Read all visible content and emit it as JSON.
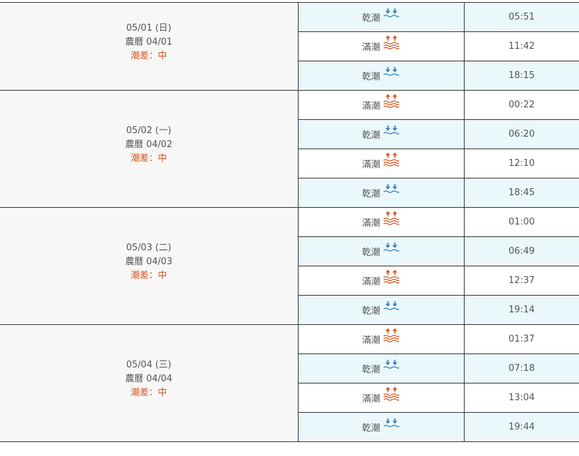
{
  "days": [
    {
      "date": "05/01 (日)",
      "lunar": "農曆 04/01",
      "range": "潮差：中",
      "tides": [
        {
          "type": "乾潮",
          "kind": "low",
          "icon": "low-tide-icon",
          "time": "05:51"
        },
        {
          "type": "滿潮",
          "kind": "high",
          "icon": "high-tide-icon",
          "time": "11:42"
        },
        {
          "type": "乾潮",
          "kind": "low",
          "icon": "low-tide-icon",
          "time": "18:15"
        }
      ]
    },
    {
      "date": "05/02 (一)",
      "lunar": "農曆 04/02",
      "range": "潮差：中",
      "tides": [
        {
          "type": "滿潮",
          "kind": "high",
          "icon": "high-tide-icon",
          "time": "00:22"
        },
        {
          "type": "乾潮",
          "kind": "low",
          "icon": "low-tide-icon",
          "time": "06:20"
        },
        {
          "type": "滿潮",
          "kind": "high",
          "icon": "high-tide-icon",
          "time": "12:10"
        },
        {
          "type": "乾潮",
          "kind": "low",
          "icon": "low-tide-icon",
          "time": "18:45"
        }
      ]
    },
    {
      "date": "05/03 (二)",
      "lunar": "農曆 04/03",
      "range": "潮差：中",
      "tides": [
        {
          "type": "滿潮",
          "kind": "high",
          "icon": "high-tide-icon",
          "time": "01:00"
        },
        {
          "type": "乾潮",
          "kind": "low",
          "icon": "low-tide-icon",
          "time": "06:49"
        },
        {
          "type": "滿潮",
          "kind": "high",
          "icon": "high-tide-icon",
          "time": "12:37"
        },
        {
          "type": "乾潮",
          "kind": "low",
          "icon": "low-tide-icon",
          "time": "19:14"
        }
      ]
    },
    {
      "date": "05/04 (三)",
      "lunar": "農曆 04/04",
      "range": "潮差：中",
      "tides": [
        {
          "type": "滿潮",
          "kind": "high",
          "icon": "high-tide-icon",
          "time": "01:37"
        },
        {
          "type": "乾潮",
          "kind": "low",
          "icon": "low-tide-icon",
          "time": "07:18"
        },
        {
          "type": "滿潮",
          "kind": "high",
          "icon": "high-tide-icon",
          "time": "13:04"
        },
        {
          "type": "乾潮",
          "kind": "low",
          "icon": "low-tide-icon",
          "time": "19:44"
        }
      ]
    }
  ],
  "colors": {
    "low_tide": "#2e7bc4",
    "high_tide": "#d9531e",
    "low_row_bg": "#eaf8fb",
    "date_bg": "#f7f7f7",
    "range_text": "#d9531e"
  }
}
